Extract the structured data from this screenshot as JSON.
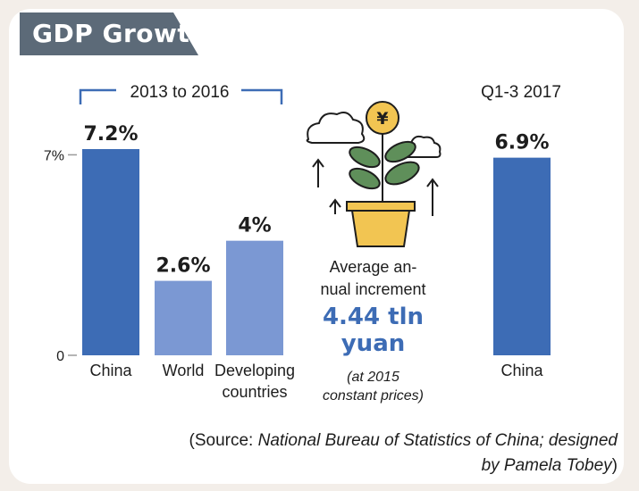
{
  "header": {
    "title": "GDP Growth"
  },
  "chart_data": [
    {
      "type": "bar",
      "group_label": "2013 to 2016",
      "categories": [
        "China",
        "World",
        "Developing countries"
      ],
      "category_lines": [
        [
          "China"
        ],
        [
          "World"
        ],
        [
          "Developing",
          "countries"
        ]
      ],
      "values": [
        7.2,
        2.6,
        4
      ],
      "value_labels": [
        "7.2%",
        "2.6%",
        "4%"
      ],
      "colors": [
        "#3d6cb5",
        "#7b98d3",
        "#7b98d3"
      ],
      "ylim": [
        0,
        7.2
      ],
      "yticks": [
        {
          "value": 0,
          "label": "0"
        },
        {
          "value": 7,
          "label": "7%"
        }
      ]
    },
    {
      "type": "bar",
      "group_label": "Q1-3 2017",
      "categories": [
        "China"
      ],
      "category_lines": [
        [
          "China"
        ]
      ],
      "values": [
        6.9
      ],
      "value_labels": [
        "6.9%"
      ],
      "colors": [
        "#3d6cb5"
      ],
      "ylim": [
        0,
        7.2
      ]
    }
  ],
  "center": {
    "label": "Average annual increment",
    "label_lines": [
      "Average an-",
      "nual increment"
    ],
    "value": "4.44 tln yuan",
    "value_lines": [
      "4.44 tln",
      "yuan"
    ],
    "note": "(at 2015 constant prices)",
    "note_lines": [
      "(at 2015",
      "constant prices)"
    ],
    "icon": "plant-with-yuan-coin-icon"
  },
  "source": {
    "prefix": "(Source: ",
    "italic_text": "National Bureau of Statistics of China; designed by Pamela Tobey",
    "suffix": ")"
  }
}
